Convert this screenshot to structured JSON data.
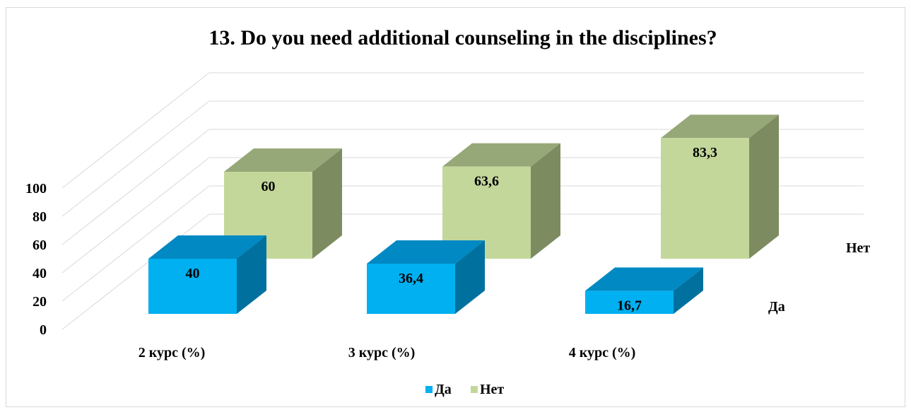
{
  "chart_data": {
    "type": "bar",
    "title": "13. Do you need additional counseling in the disciplines?",
    "categories": [
      "2 курс (%)",
      "3 курс (%)",
      "4 курс (%)"
    ],
    "series": [
      {
        "name": "Да",
        "values": [
          40,
          36.4,
          16.7
        ],
        "labels": [
          "40",
          "36,4",
          "16,7"
        ],
        "color": "#00b0f0"
      },
      {
        "name": "Нет",
        "values": [
          60,
          63.6,
          83.3
        ],
        "labels": [
          "60",
          "63,6",
          "83,3"
        ],
        "color": "#c4d79b"
      }
    ],
    "yticks": [
      "0",
      "20",
      "40",
      "60",
      "80",
      "100"
    ],
    "ylim": [
      0,
      100
    ],
    "grid": true,
    "legend_position": "bottom",
    "style": "3d-column"
  }
}
